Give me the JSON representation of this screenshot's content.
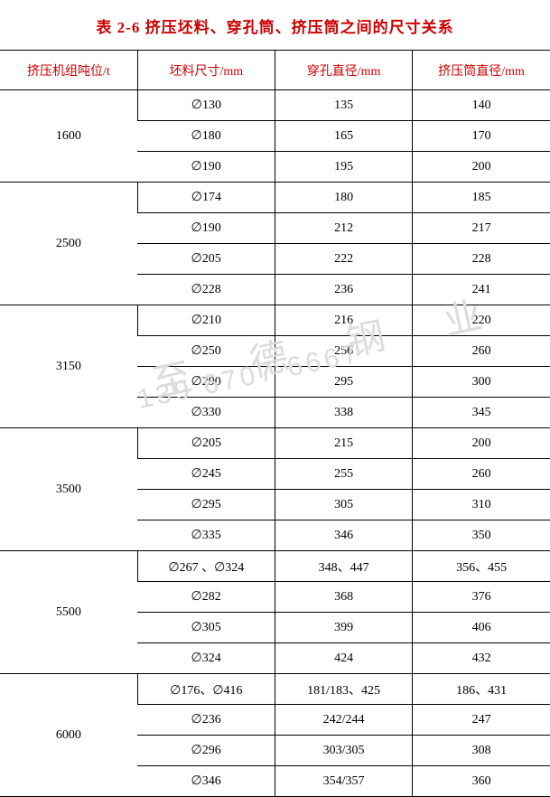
{
  "title": "表 2-6 挤压坯料、穿孔筒、挤压筒之间的尺寸关系",
  "title_color": "#cc0000",
  "title_fontsize": 17,
  "header_color": "#cc0000",
  "header_fontsize": 14,
  "body_color": "#000000",
  "body_fontsize": 14,
  "border_color": "#000000",
  "background_color": "#ffffff",
  "columns": [
    "挤压机组吨位/t",
    "坯料尺寸/mm",
    "穿孔直径/mm",
    "挤压筒直径/mm"
  ],
  "col_widths": [
    "25%",
    "25%",
    "25%",
    "25%"
  ],
  "groups": [
    {
      "tonnage": "1600",
      "rows": [
        [
          "∅130",
          "135",
          "140"
        ],
        [
          "∅180",
          "165",
          "170"
        ],
        [
          "∅190",
          "195",
          "200"
        ]
      ]
    },
    {
      "tonnage": "2500",
      "rows": [
        [
          "∅174",
          "180",
          "185"
        ],
        [
          "∅190",
          "212",
          "217"
        ],
        [
          "∅205",
          "222",
          "228"
        ],
        [
          "∅228",
          "236",
          "241"
        ]
      ]
    },
    {
      "tonnage": "3150",
      "rows": [
        [
          "∅210",
          "216",
          "220"
        ],
        [
          "∅250",
          "256",
          "260"
        ],
        [
          "∅290",
          "295",
          "300"
        ],
        [
          "∅330",
          "338",
          "345"
        ]
      ]
    },
    {
      "tonnage": "3500",
      "rows": [
        [
          "∅205",
          "215",
          "200"
        ],
        [
          "∅245",
          "255",
          "260"
        ],
        [
          "∅295",
          "305",
          "310"
        ],
        [
          "∅335",
          "346",
          "350"
        ]
      ]
    },
    {
      "tonnage": "5500",
      "rows": [
        [
          "∅267 、∅324",
          "348、447",
          "356、455"
        ],
        [
          "∅282",
          "368",
          "376"
        ],
        [
          "∅305",
          "399",
          "406"
        ],
        [
          "∅324",
          "424",
          "432"
        ]
      ]
    },
    {
      "tonnage": "6000",
      "rows": [
        [
          "∅176、∅416",
          "181/183、425",
          "186、431"
        ],
        [
          "∅236",
          "242/244",
          "247"
        ],
        [
          "∅296",
          "303/305",
          "308"
        ],
        [
          "∅346",
          "354/357",
          "360"
        ]
      ]
    }
  ],
  "watermark": {
    "line1": "至 德 钢 业",
    "line2": "139 6707 6667",
    "color": "#dcdcdc",
    "top1": 350,
    "left1": 165,
    "top2": 400,
    "left2": 150
  }
}
